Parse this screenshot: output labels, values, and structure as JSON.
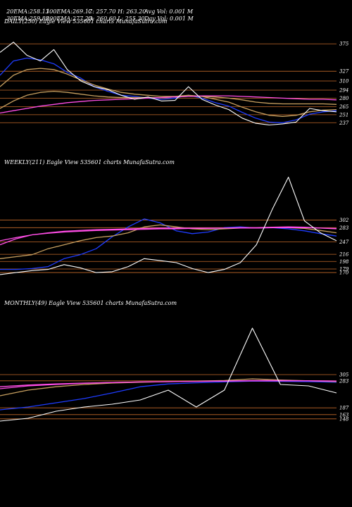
{
  "header": {
    "row1": [
      {
        "label": "20EMA:",
        "value": "258.13"
      },
      {
        "label": "100EMA:",
        "value": "269.17"
      },
      {
        "label": "C:",
        "value": "257.70"
      },
      {
        "label": "H:",
        "value": "263.20"
      },
      {
        "label": "Avg Vol:",
        "value": "0.001 M"
      }
    ],
    "row2": [
      {
        "label": "30EMA:",
        "value": "259.88"
      },
      {
        "label": "200EMA:",
        "value": "277.23"
      },
      {
        "label": "O:",
        "value": "260.60"
      },
      {
        "label": "L:",
        "value": "255.30"
      },
      {
        "label": "Day Vol:",
        "value": "0.001 M"
      }
    ]
  },
  "colors": {
    "background": "#000000",
    "price": "#ffffff",
    "ema_short": "#1e3cff",
    "ema_pink": "#ff4de6",
    "ema_gold": "#c8a060",
    "level_line": "#c46a2a"
  },
  "chart_data": [
    {
      "type": "line",
      "title": "DAILY(250) Eagle  View  535601 charts MunafaSutra.com",
      "y_ticks": [
        "375",
        "327",
        "310",
        "294",
        "280",
        "265",
        "251",
        "237"
      ],
      "ylim": [
        225,
        395
      ],
      "x": [
        0,
        10,
        20,
        30,
        40,
        50,
        60,
        70,
        80,
        90,
        100,
        110,
        120,
        130,
        140,
        150,
        160,
        170,
        180,
        190,
        200,
        210,
        220,
        230,
        240,
        250
      ],
      "series": [
        {
          "name": "price",
          "color": "#ffffff",
          "values": [
            360,
            378,
            355,
            345,
            365,
            330,
            310,
            300,
            295,
            285,
            278,
            282,
            275,
            276,
            300,
            278,
            268,
            260,
            245,
            236,
            233,
            235,
            238,
            262,
            258,
            256
          ]
        },
        {
          "name": "EMA20",
          "color": "#1e3cff",
          "values": [
            320,
            345,
            350,
            347,
            340,
            325,
            315,
            300,
            292,
            285,
            283,
            280,
            278,
            280,
            285,
            280,
            272,
            266,
            255,
            245,
            238,
            237,
            242,
            252,
            256,
            258
          ]
        },
        {
          "name": "EMA50",
          "color": "#c8a060",
          "values": [
            300,
            320,
            330,
            332,
            330,
            322,
            312,
            303,
            296,
            290,
            287,
            285,
            283,
            283,
            285,
            283,
            278,
            273,
            264,
            256,
            250,
            248,
            250,
            256,
            259,
            260
          ]
        },
        {
          "name": "EMA100",
          "color": "#c8a060",
          "values": [
            262,
            275,
            285,
            290,
            292,
            290,
            287,
            284,
            282,
            281,
            281,
            281,
            281,
            282,
            283,
            283,
            282,
            280,
            277,
            273,
            271,
            270,
            270,
            270,
            270,
            269
          ]
        },
        {
          "name": "EMA200",
          "color": "#ff4de6",
          "values": [
            254,
            258,
            262,
            266,
            269,
            272,
            274,
            276,
            277,
            278,
            279,
            280,
            281,
            282,
            283,
            284,
            284,
            284,
            283,
            282,
            281,
            280,
            279,
            278,
            278,
            277
          ]
        }
      ],
      "level_lines": [
        375,
        327,
        310,
        294,
        280,
        265,
        251,
        237
      ]
    },
    {
      "type": "line",
      "title": "WEEKLY(211) Eagle  View  535601 charts MunafaSutra.com",
      "y_ticks": [
        "302",
        "283",
        "247",
        "216",
        "198",
        "179",
        "170"
      ],
      "ylim": [
        140,
        420
      ],
      "x": [
        0,
        10,
        20,
        30,
        40,
        50,
        60,
        70,
        80,
        90,
        100,
        110,
        120,
        130,
        140,
        150,
        160,
        170,
        180,
        190,
        200,
        210
      ],
      "series": [
        {
          "name": "price",
          "color": "#ffffff",
          "values": [
            165,
            170,
            175,
            178,
            190,
            182,
            170,
            172,
            185,
            205,
            200,
            195,
            180,
            170,
            178,
            195,
            240,
            330,
            410,
            300,
            270,
            250
          ]
        },
        {
          "name": "EMA20",
          "color": "#1e3cff",
          "values": [
            178,
            178,
            180,
            185,
            205,
            215,
            230,
            260,
            285,
            305,
            295,
            275,
            268,
            272,
            283,
            285,
            282,
            283,
            280,
            275,
            268,
            262
          ]
        },
        {
          "name": "EMA50",
          "color": "#c8a060",
          "values": [
            205,
            210,
            215,
            230,
            240,
            250,
            258,
            262,
            270,
            285,
            290,
            285,
            280,
            278,
            280,
            282,
            282,
            284,
            283,
            281,
            276,
            270
          ]
        },
        {
          "name": "EMA100",
          "color": "#ff4de6",
          "values": [
            240,
            255,
            265,
            270,
            274,
            276,
            278,
            279,
            280,
            281,
            282,
            282,
            282,
            282,
            282,
            283,
            283,
            284,
            285,
            284,
            282,
            280
          ]
        },
        {
          "name": "EMA200",
          "color": "#ff4de6",
          "values": [
            250,
            258,
            265,
            269,
            272,
            274,
            276,
            277,
            278,
            279,
            280,
            280,
            281,
            281,
            282,
            282,
            282,
            283,
            283,
            283,
            282,
            281
          ]
        }
      ],
      "level_lines": [
        302,
        283,
        247,
        216,
        198,
        179,
        170
      ]
    },
    {
      "type": "line",
      "title": "MONTHLY(49) Eagle  View  535601 charts MunafaSutra.com",
      "y_ticks": [
        "305",
        "283",
        "187",
        "163",
        "148"
      ],
      "ylim": [
        100,
        520
      ],
      "x": [
        0,
        4,
        8,
        12,
        16,
        20,
        24,
        28,
        32,
        36,
        40,
        44,
        48
      ],
      "series": [
        {
          "name": "price",
          "color": "#ffffff",
          "values": [
            140,
            150,
            175,
            190,
            200,
            215,
            250,
            190,
            250,
            470,
            270,
            265,
            240
          ]
        },
        {
          "name": "EMA20",
          "color": "#1e3cff",
          "values": [
            180,
            190,
            205,
            220,
            240,
            262,
            272,
            276,
            279,
            282,
            281,
            280,
            278
          ]
        },
        {
          "name": "EMA50",
          "color": "#c8a060",
          "values": [
            230,
            250,
            262,
            270,
            275,
            278,
            280,
            282,
            284,
            290,
            286,
            283,
            280
          ]
        },
        {
          "name": "EMA100",
          "color": "#ff4de6",
          "values": [
            255,
            265,
            270,
            274,
            277,
            279,
            280,
            281,
            282,
            284,
            284,
            283,
            282
          ]
        },
        {
          "name": "EMA200",
          "color": "#ff4de6",
          "values": [
            262,
            268,
            272,
            275,
            277,
            279,
            280,
            281,
            282,
            283,
            283,
            283,
            282
          ]
        }
      ],
      "level_lines": [
        305,
        283,
        187,
        163,
        148
      ]
    }
  ]
}
